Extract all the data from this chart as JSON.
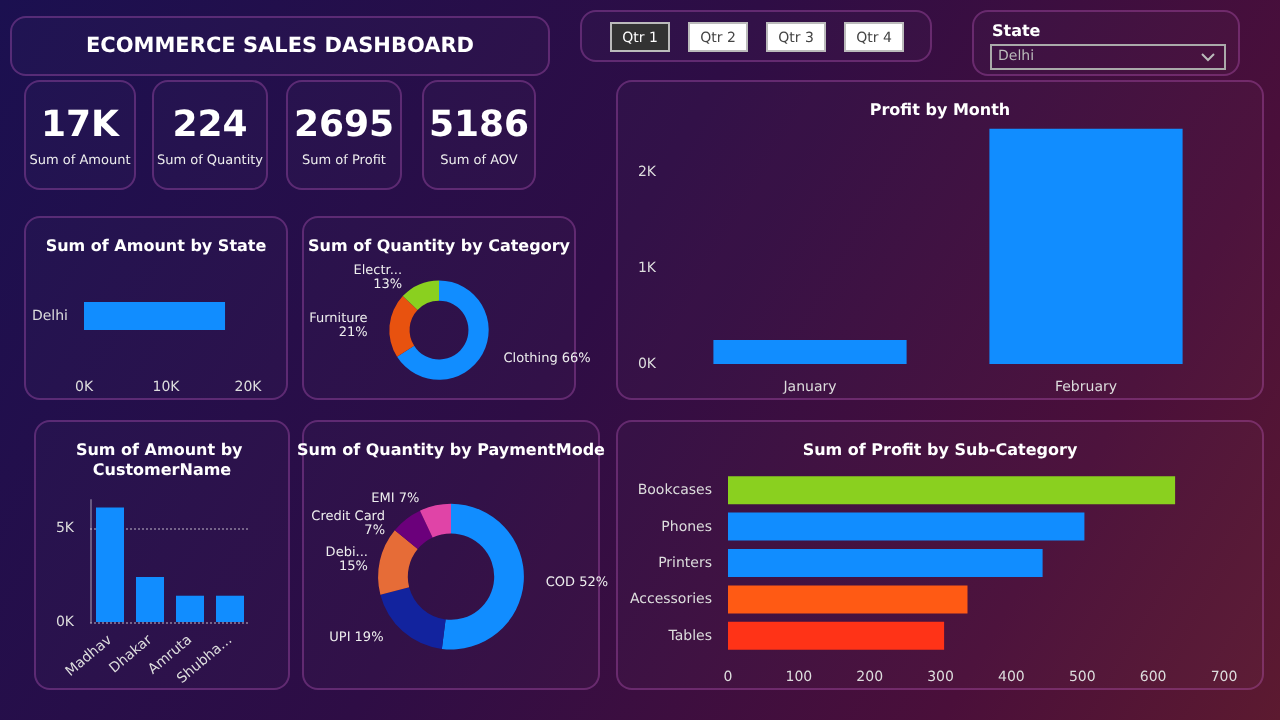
{
  "chart_data": [
    {
      "type": "other",
      "title": "ECOMMERCE SALES DASHBOARD",
      "annotations": [
        "17K",
        "Sum of Amount",
        "224",
        "Sum of Quantity",
        "2695",
        "Sum of Profit",
        "5186",
        "Sum of AOV"
      ]
    },
    {
      "type": "other",
      "categories": [
        "Qtr 1",
        "Qtr 2",
        "Qtr 3",
        "Qtr 4"
      ],
      "title": "State",
      "annotations": [
        "Delhi"
      ]
    },
    {
      "type": "bar",
      "orientation": "horizontal",
      "title": "Sum of Amount by State",
      "categories": [
        "Delhi"
      ],
      "values": [
        17200
      ],
      "color": "#118dff",
      "xlim": [
        0,
        20000
      ],
      "xticks": [
        {
          "value": 0,
          "label": "0K"
        },
        {
          "value": 10000,
          "label": "10K"
        },
        {
          "value": 20000,
          "label": "20K"
        }
      ]
    },
    {
      "type": "donut",
      "title": "Sum of Quantity by Category",
      "categories": [
        "Clothing",
        "Furniture",
        "Electr..."
      ],
      "values": [
        66,
        21,
        13
      ],
      "value_labels": [
        "66%",
        "21%",
        "13%"
      ],
      "colors": [
        "#118dff",
        "#e8520f",
        "#8ad01f"
      ]
    },
    {
      "type": "bar",
      "title": "Profit by Month",
      "categories": [
        "January",
        "February"
      ],
      "values": [
        250,
        2450
      ],
      "color": "#118dff",
      "ylim": [
        0,
        2500
      ],
      "yticks": [
        {
          "value": 0,
          "label": "0K"
        },
        {
          "value": 1000,
          "label": "1K"
        },
        {
          "value": 2000,
          "label": "2K"
        }
      ]
    },
    {
      "type": "bar",
      "title": "Sum of Amount by CustomerName",
      "categories": [
        "Madhav",
        "Dhakar",
        "Amruta",
        "Shubha..."
      ],
      "values": [
        6100,
        2400,
        1400,
        1400
      ],
      "color": "#118dff",
      "ylim": [
        0,
        6500
      ],
      "yticks": [
        {
          "value": 0,
          "label": "0K"
        },
        {
          "value": 5000,
          "label": "5K"
        }
      ],
      "grid": "y"
    },
    {
      "type": "donut",
      "title": "Sum of Quantity by PaymentMode",
      "categories": [
        "COD",
        "UPI",
        "Debi...",
        "Credit Card",
        "EMI"
      ],
      "values": [
        52,
        19,
        15,
        7,
        7
      ],
      "value_labels": [
        "52%",
        "19%",
        "15%",
        "7%",
        "7%"
      ],
      "colors": [
        "#118dff",
        "#12239e",
        "#e66c37",
        "#6b007b",
        "#e044a7"
      ]
    },
    {
      "type": "bar",
      "orientation": "horizontal",
      "title": "Sum of Profit by Sub-Category",
      "categories": [
        "Bookcases",
        "Phones",
        "Printers",
        "Accessories",
        "Tables"
      ],
      "values": [
        631,
        503,
        444,
        338,
        305
      ],
      "colors": [
        "#8ad01f",
        "#118dff",
        "#118dff",
        "#ff5a14",
        "#ff3317"
      ],
      "xlim": [
        0,
        700
      ],
      "xticks": [
        0,
        100,
        200,
        300,
        400,
        500,
        600,
        700
      ]
    }
  ]
}
